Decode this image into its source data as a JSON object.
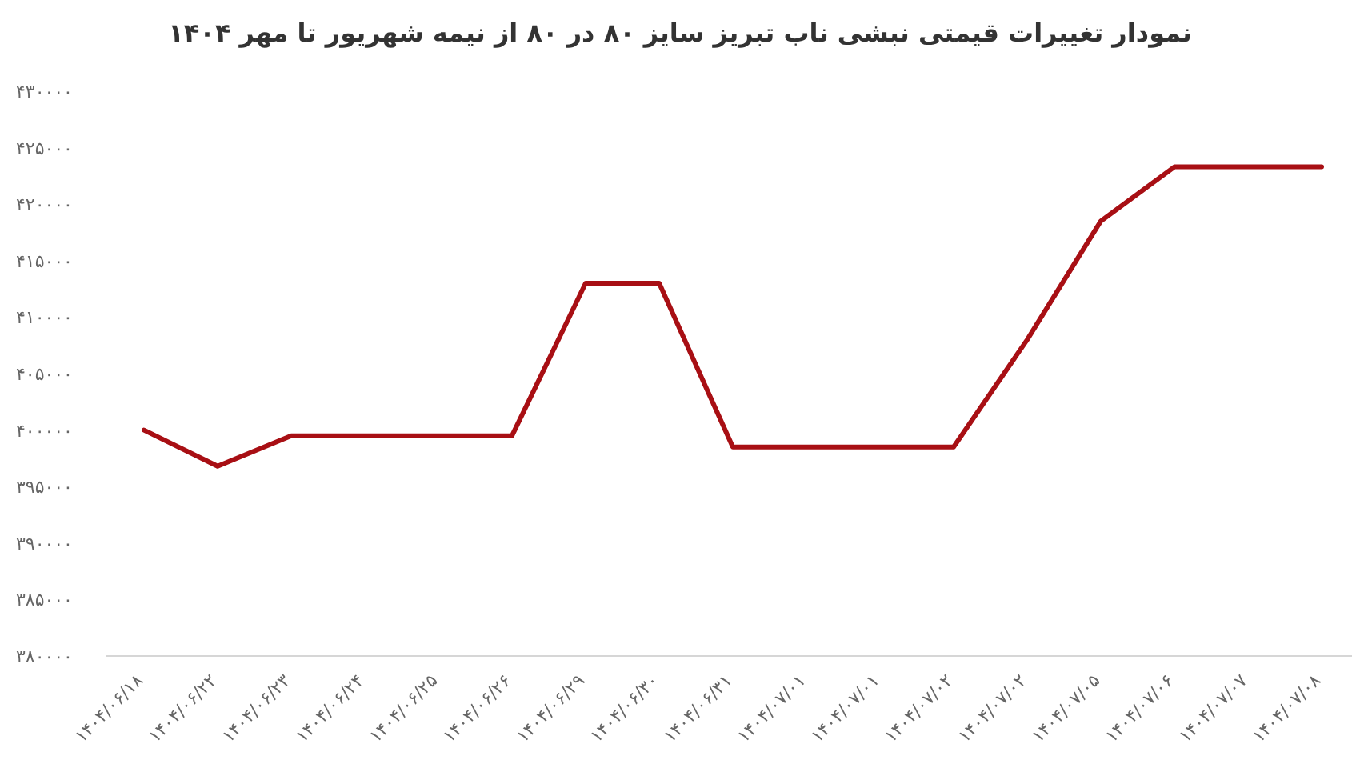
{
  "chart_data": {
    "type": "line",
    "title": "نمودار تغییرات قیمتی نبشی ناب تبریز سایز ۸۰ در ۸۰ از نیمه شهریور تا مهر ۱۴۰۴",
    "categories": [
      "۱۴۰۴/۰۶/۱۸",
      "۱۴۰۴/۰۶/۲۲",
      "۱۴۰۴/۰۶/۲۳",
      "۱۴۰۴/۰۶/۲۴",
      "۱۴۰۴/۰۶/۲۵",
      "۱۴۰۴/۰۶/۲۶",
      "۱۴۰۴/۰۶/۲۹",
      "۱۴۰۴/۰۶/۳۰",
      "۱۴۰۴/۰۶/۳۱",
      "۱۴۰۴/۰۷/۰۱",
      "۱۴۰۴/۰۷/۰۱",
      "۱۴۰۴/۰۷/۰۲",
      "۱۴۰۴/۰۷/۰۲",
      "۱۴۰۴/۰۷/۰۵",
      "۱۴۰۴/۰۷/۰۶",
      "۱۴۰۴/۰۷/۰۷",
      "۱۴۰۴/۰۷/۰۸"
    ],
    "series": [
      {
        "color": "#a80f14",
        "values": [
          400000,
          396800,
          399500,
          399500,
          399500,
          399500,
          413000,
          413000,
          398500,
          398500,
          398500,
          398500,
          408000,
          418500,
          423300,
          423300,
          423300
        ]
      }
    ],
    "ylim": [
      380000,
      430000
    ],
    "yticks": [
      {
        "value": 380000,
        "label": "۳۸۰۰۰۰"
      },
      {
        "value": 385000,
        "label": "۳۸۵۰۰۰"
      },
      {
        "value": 390000,
        "label": "۳۹۰۰۰۰"
      },
      {
        "value": 395000,
        "label": "۳۹۵۰۰۰"
      },
      {
        "value": 400000,
        "label": "۴۰۰۰۰۰"
      },
      {
        "value": 405000,
        "label": "۴۰۵۰۰۰"
      },
      {
        "value": 410000,
        "label": "۴۱۰۰۰۰"
      },
      {
        "value": 415000,
        "label": "۴۱۵۰۰۰"
      },
      {
        "value": 420000,
        "label": "۴۲۰۰۰۰"
      },
      {
        "value": 425000,
        "label": "۴۲۵۰۰۰"
      },
      {
        "value": 430000,
        "label": "۴۳۰۰۰۰"
      }
    ],
    "grid": false,
    "marker": "none",
    "line_style": "solid"
  }
}
